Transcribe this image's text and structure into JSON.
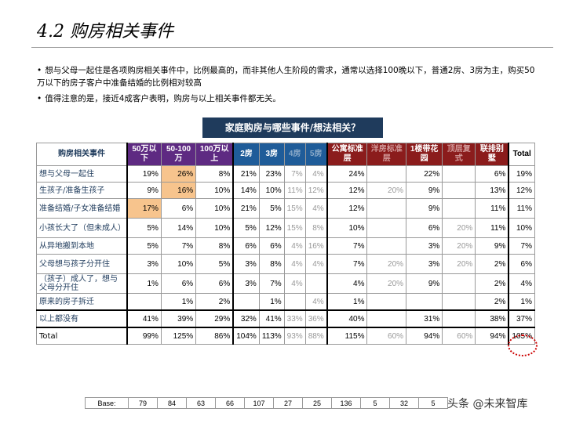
{
  "title": "4.2 购房相关事件",
  "bullets": [
    "想与父母一起住是各项购房相关事件中，比例最高的，而非其他人生阶段的需求，通常以选择100晚以下，普通2房、3房为主，购买50万以下的房子客户中准备结婚的比例相对较高",
    "值得注意的是，接近4成客户表明，购房与以上相关事件都无关。"
  ],
  "table_title": "家庭购房与哪些事件/想法相关？",
  "headers": {
    "label": "购房相关事件",
    "cols": [
      "50万以下",
      "50-100万",
      "100万以上",
      "2房",
      "3房",
      "4房",
      "5房",
      "公寓标准层",
      "洋房标准层",
      "1楼带花园",
      "顶层复式",
      "联排别墅",
      "Total"
    ]
  },
  "rows": [
    {
      "label": "想与父母一起住",
      "values": [
        "19%",
        "26%",
        "8%",
        "21%",
        "23%",
        "7%",
        "4%",
        "24%",
        "",
        "22%",
        "",
        "6%",
        "19%"
      ]
    },
    {
      "label": "生孩子/准备生孩子",
      "values": [
        "9%",
        "16%",
        "10%",
        "14%",
        "10%",
        "11%",
        "12%",
        "12%",
        "20%",
        "9%",
        "",
        "13%",
        "12%"
      ]
    },
    {
      "label": "准备结婚/子女准备结婚",
      "values": [
        "17%",
        "6%",
        "10%",
        "21%",
        "5%",
        "15%",
        "4%",
        "12%",
        "",
        "9%",
        "",
        "11%",
        "11%"
      ]
    },
    {
      "label": "小孩长大了（但未成人）",
      "values": [
        "5%",
        "14%",
        "10%",
        "5%",
        "12%",
        "15%",
        "8%",
        "10%",
        "",
        "6%",
        "20%",
        "11%",
        "10%"
      ]
    },
    {
      "label": "从异地搬到本地",
      "values": [
        "5%",
        "7%",
        "8%",
        "6%",
        "6%",
        "4%",
        "16%",
        "7%",
        "",
        "3%",
        "20%",
        "9%",
        "7%"
      ]
    },
    {
      "label": "父母想与孩子分开住",
      "values": [
        "3%",
        "10%",
        "5%",
        "3%",
        "8%",
        "4%",
        "4%",
        "7%",
        "20%",
        "3%",
        "20%",
        "2%",
        "6%"
      ]
    },
    {
      "label": "（孩子）成人了，想与父母分开住",
      "values": [
        "1%",
        "6%",
        "6%",
        "3%",
        "7%",
        "4%",
        "",
        "4%",
        "20%",
        "9%",
        "",
        "2%",
        "4%"
      ]
    },
    {
      "label": "原来的房子拆迁",
      "values": [
        "",
        "1%",
        "2%",
        "",
        "1%",
        "",
        "4%",
        "1%",
        "",
        "",
        "",
        "2%",
        "1%"
      ]
    },
    {
      "label": "以上都没有",
      "values": [
        "41%",
        "39%",
        "29%",
        "32%",
        "41%",
        "33%",
        "36%",
        "40%",
        "",
        "31%",
        "",
        "38%",
        "37%"
      ]
    },
    {
      "label": "Total",
      "values": [
        "99%",
        "125%",
        "86%",
        "104%",
        "113%",
        "93%",
        "88%",
        "115%",
        "60%",
        "94%",
        "60%",
        "94%",
        "105%"
      ]
    }
  ],
  "base": {
    "label": "Base:",
    "values": [
      "79",
      "84",
      "63",
      "66",
      "107",
      "27",
      "25",
      "136",
      "5",
      "32",
      "5"
    ]
  },
  "watermark": "头条 @未来智库"
}
